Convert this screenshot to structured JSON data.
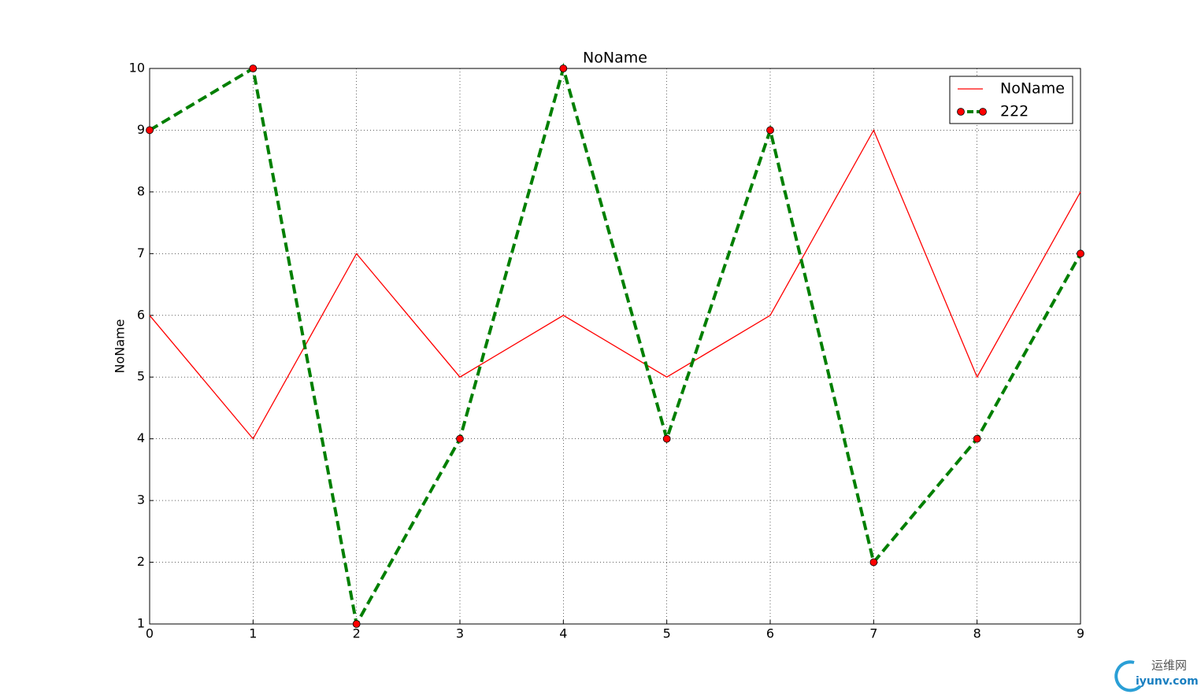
{
  "chart_data": {
    "type": "line",
    "title": "NoName",
    "y_label": "NoName",
    "x": [
      0,
      1,
      2,
      3,
      4,
      5,
      6,
      7,
      8,
      9
    ],
    "series": [
      {
        "name": "NoName",
        "color": "#ff0000",
        "style": "solid",
        "marker": false,
        "values": [
          6,
          4,
          7,
          5,
          6,
          5,
          6,
          9,
          5,
          8
        ]
      },
      {
        "name": "222",
        "color": "#007f00",
        "style": "dashed",
        "marker": true,
        "marker_color": "#ff0000",
        "values": [
          9,
          10,
          1,
          4,
          10,
          4,
          9,
          2,
          4,
          7
        ]
      }
    ],
    "xlim": [
      0,
      9
    ],
    "xticks": [
      0,
      1,
      2,
      3,
      4,
      5,
      6,
      7,
      8,
      9
    ],
    "ylim": [
      1,
      10
    ],
    "yticks": [
      1,
      2,
      3,
      4,
      5,
      6,
      7,
      8,
      9,
      10
    ],
    "grid": true,
    "legend": "upper right"
  },
  "watermark": {
    "name": "运维网",
    "site": "iyunv.com"
  }
}
